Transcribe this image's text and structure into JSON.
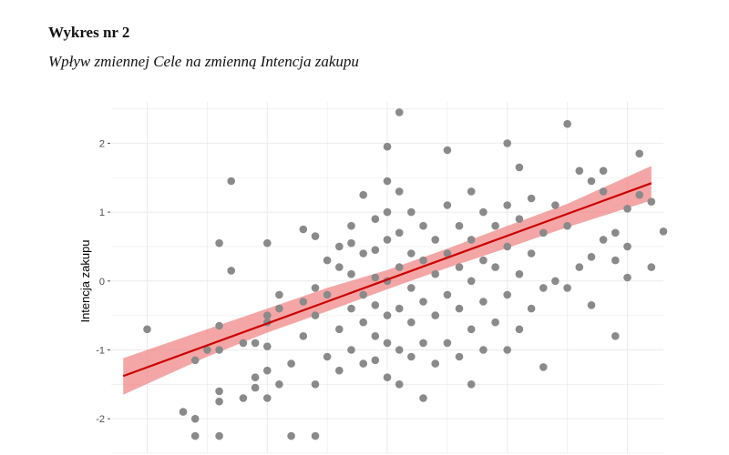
{
  "figure": {
    "number": "Wykres nr 2",
    "caption": "Wpływ zmiennej Cele na zmienną Intencja zakupu"
  },
  "chart_data": {
    "type": "scatter",
    "ylabel": "Intencja zakupu",
    "xlabel": "",
    "xlim": [
      -2.3,
      2.3
    ],
    "ylim": [
      -2.5,
      2.6
    ],
    "yticks": [
      -2,
      -1,
      0,
      1,
      2
    ],
    "ytick_labels": [
      "-2",
      "-1",
      "0",
      "1",
      "2"
    ],
    "xgrid_major": [
      -2,
      -1,
      0,
      1,
      2
    ],
    "grid": true,
    "colors": {
      "points": "#8a8a8a",
      "line": "#cc0000",
      "band": "#f08080",
      "grid": "#ebebeb"
    },
    "regression": {
      "x": [
        -2.2,
        2.2
      ],
      "y": [
        -1.38,
        1.42
      ]
    },
    "ci_band": {
      "x": [
        -2.2,
        -1.5,
        -1.0,
        -0.5,
        0.0,
        0.5,
        1.0,
        1.5,
        2.2
      ],
      "lower": [
        -1.65,
        -1.1,
        -0.75,
        -0.44,
        -0.12,
        0.19,
        0.48,
        0.78,
        1.17
      ],
      "upper": [
        -1.12,
        -0.7,
        -0.4,
        -0.1,
        0.16,
        0.47,
        0.8,
        1.12,
        1.67
      ]
    },
    "points": [
      [
        -2.0,
        -0.7
      ],
      [
        -1.7,
        -1.9
      ],
      [
        -1.6,
        -2.25
      ],
      [
        -1.6,
        -1.15
      ],
      [
        -1.6,
        -2.0
      ],
      [
        -1.5,
        -1.0
      ],
      [
        -1.4,
        -0.65
      ],
      [
        -1.4,
        -1.6
      ],
      [
        -1.4,
        -2.25
      ],
      [
        -1.4,
        -1.75
      ],
      [
        -1.4,
        -1.0
      ],
      [
        -1.4,
        0.55
      ],
      [
        -1.3,
        1.45
      ],
      [
        -1.3,
        0.15
      ],
      [
        -1.2,
        -1.7
      ],
      [
        -1.2,
        -0.9
      ],
      [
        -1.1,
        -1.4
      ],
      [
        -1.1,
        -1.55
      ],
      [
        -1.1,
        -0.9
      ],
      [
        -1.0,
        -0.5
      ],
      [
        -1.0,
        -1.3
      ],
      [
        -1.0,
        -1.7
      ],
      [
        -1.0,
        -0.6
      ],
      [
        -1.0,
        -0.95
      ],
      [
        -1.0,
        0.55
      ],
      [
        -0.9,
        -1.5
      ],
      [
        -0.9,
        -0.2
      ],
      [
        -0.9,
        -0.4
      ],
      [
        -0.8,
        -2.25
      ],
      [
        -0.8,
        -1.2
      ],
      [
        -0.7,
        -0.8
      ],
      [
        -0.7,
        -0.3
      ],
      [
        -0.7,
        0.75
      ],
      [
        -0.6,
        -2.25
      ],
      [
        -0.6,
        -1.5
      ],
      [
        -0.6,
        -0.5
      ],
      [
        -0.6,
        -0.1
      ],
      [
        -0.6,
        0.65
      ],
      [
        -0.5,
        -1.1
      ],
      [
        -0.5,
        -0.2
      ],
      [
        -0.5,
        0.3
      ],
      [
        -0.4,
        -1.3
      ],
      [
        -0.4,
        -0.7
      ],
      [
        -0.4,
        0.2
      ],
      [
        -0.4,
        0.5
      ],
      [
        -0.3,
        -1.0
      ],
      [
        -0.3,
        -0.4
      ],
      [
        -0.3,
        0.1
      ],
      [
        -0.3,
        0.55
      ],
      [
        -0.3,
        0.8
      ],
      [
        -0.2,
        -1.2
      ],
      [
        -0.2,
        -0.6
      ],
      [
        -0.2,
        -0.2
      ],
      [
        -0.2,
        0.4
      ],
      [
        -0.2,
        1.25
      ],
      [
        -0.1,
        -1.15
      ],
      [
        -0.1,
        -0.8
      ],
      [
        -0.1,
        -0.35
      ],
      [
        -0.1,
        0.05
      ],
      [
        -0.1,
        0.45
      ],
      [
        -0.1,
        0.9
      ],
      [
        0.0,
        -1.4
      ],
      [
        0.0,
        -0.9
      ],
      [
        0.0,
        -0.5
      ],
      [
        0.0,
        0.0
      ],
      [
        0.0,
        0.6
      ],
      [
        0.0,
        1.0
      ],
      [
        0.0,
        1.45
      ],
      [
        0.0,
        1.95
      ],
      [
        0.1,
        -1.5
      ],
      [
        0.1,
        -1.0
      ],
      [
        0.1,
        -0.4
      ],
      [
        0.1,
        0.2
      ],
      [
        0.1,
        0.7
      ],
      [
        0.1,
        1.3
      ],
      [
        0.1,
        2.45
      ],
      [
        0.2,
        -1.1
      ],
      [
        0.2,
        -0.6
      ],
      [
        0.2,
        -0.1
      ],
      [
        0.2,
        0.4
      ],
      [
        0.2,
        1.0
      ],
      [
        0.3,
        -1.7
      ],
      [
        0.3,
        -0.9
      ],
      [
        0.3,
        -0.3
      ],
      [
        0.3,
        0.3
      ],
      [
        0.3,
        0.8
      ],
      [
        0.4,
        -1.2
      ],
      [
        0.4,
        -0.5
      ],
      [
        0.4,
        0.1
      ],
      [
        0.4,
        0.6
      ],
      [
        0.5,
        -0.9
      ],
      [
        0.5,
        -0.2
      ],
      [
        0.5,
        0.4
      ],
      [
        0.5,
        1.1
      ],
      [
        0.5,
        1.9
      ],
      [
        0.6,
        -1.1
      ],
      [
        0.6,
        -0.4
      ],
      [
        0.6,
        0.2
      ],
      [
        0.6,
        0.8
      ],
      [
        0.7,
        -1.5
      ],
      [
        0.7,
        -0.7
      ],
      [
        0.7,
        0.0
      ],
      [
        0.7,
        0.6
      ],
      [
        0.7,
        1.3
      ],
      [
        0.8,
        -1.0
      ],
      [
        0.8,
        -0.3
      ],
      [
        0.8,
        0.3
      ],
      [
        0.8,
        1.0
      ],
      [
        0.9,
        -0.6
      ],
      [
        0.9,
        0.2
      ],
      [
        0.9,
        0.8
      ],
      [
        1.0,
        -1.0
      ],
      [
        1.0,
        -0.2
      ],
      [
        1.0,
        0.5
      ],
      [
        1.0,
        1.1
      ],
      [
        1.0,
        2.0
      ],
      [
        1.1,
        -0.7
      ],
      [
        1.1,
        0.1
      ],
      [
        1.1,
        0.9
      ],
      [
        1.1,
        1.65
      ],
      [
        1.2,
        -0.4
      ],
      [
        1.2,
        0.4
      ],
      [
        1.2,
        1.2
      ],
      [
        1.3,
        -1.25
      ],
      [
        1.3,
        -0.1
      ],
      [
        1.3,
        0.7
      ],
      [
        1.4,
        0.0
      ],
      [
        1.4,
        1.1
      ],
      [
        1.5,
        -0.1
      ],
      [
        1.5,
        0.8
      ],
      [
        1.5,
        2.28
      ],
      [
        1.6,
        0.2
      ],
      [
        1.6,
        1.6
      ],
      [
        1.7,
        -0.35
      ],
      [
        1.7,
        0.35
      ],
      [
        1.7,
        1.45
      ],
      [
        1.8,
        0.6
      ],
      [
        1.8,
        1.3
      ],
      [
        1.8,
        1.6
      ],
      [
        1.9,
        -0.8
      ],
      [
        1.9,
        0.3
      ],
      [
        1.9,
        0.7
      ],
      [
        2.0,
        0.05
      ],
      [
        2.0,
        0.5
      ],
      [
        2.0,
        1.05
      ],
      [
        2.1,
        1.25
      ],
      [
        2.1,
        1.85
      ],
      [
        2.2,
        0.2
      ],
      [
        2.2,
        1.15
      ],
      [
        2.3,
        0.72
      ]
    ]
  }
}
